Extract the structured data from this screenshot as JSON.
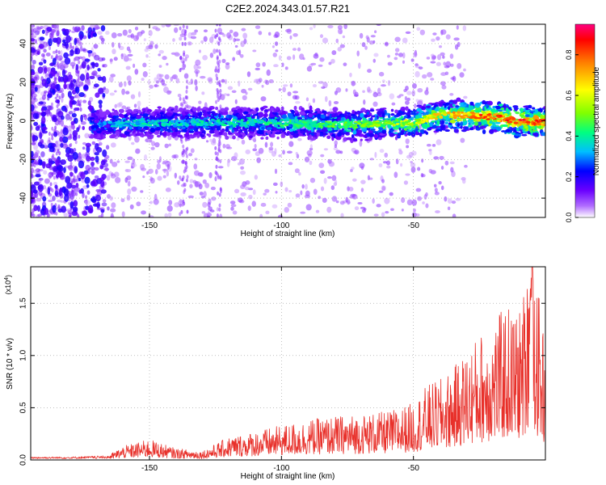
{
  "figure": {
    "title": "C2E2.2024.343.01.57.R21"
  },
  "chart_data": [
    {
      "type": "heatmap",
      "xlabel": "Height of straight line (km)",
      "ylabel": "Frequency (Hz)",
      "xlim": [
        -195,
        0
      ],
      "ylim": [
        -50,
        50
      ],
      "xticks": [
        -150,
        -100,
        -50
      ],
      "yticks": [
        -40,
        -20,
        0,
        20,
        40
      ],
      "xtick_labels": [
        "-150",
        "-100",
        "-50"
      ],
      "ytick_labels": [
        "-40",
        "-20",
        "0",
        "20",
        "40"
      ],
      "grid": true,
      "colorbar": {
        "label": "Normalized spectral amplitude",
        "range": [
          0,
          0.95
        ],
        "ticks": [
          0.0,
          0.2,
          0.4,
          0.6,
          0.8
        ],
        "tick_labels": [
          "0.0",
          "0.2",
          "0.4",
          "0.6",
          "0.8"
        ],
        "colormap": [
          "#ffffff",
          "#b06cff",
          "#6a00ff",
          "#0000ff",
          "#00bfff",
          "#00ff80",
          "#80ff00",
          "#ffff00",
          "#ff8000",
          "#ff0000",
          "#ff0080"
        ]
      },
      "ridge": {
        "x": [
          -170,
          -150,
          -125,
          -100,
          -75,
          -50,
          -40,
          -30,
          -20,
          -10,
          0
        ],
        "frequency_hz": [
          -2,
          -1,
          -1,
          -1,
          -2,
          -1,
          3,
          3,
          2,
          0,
          -1
        ],
        "peak_amplitude": [
          0.35,
          0.4,
          0.4,
          0.45,
          0.5,
          0.6,
          0.7,
          0.75,
          0.85,
          0.9,
          0.85
        ]
      }
    },
    {
      "type": "line",
      "xlabel": "Height of straight line (km)",
      "ylabel": "SNR (10 * v/v)",
      "y_multiplier": "(x10",
      "y_multiplier_exp": "4",
      "y_multiplier_close": ")",
      "xlim": [
        -195,
        0
      ],
      "ylim": [
        0,
        1.85
      ],
      "xticks": [
        -150,
        -100,
        -50
      ],
      "yticks": [
        0.0,
        0.5,
        1.0,
        1.5
      ],
      "xtick_labels": [
        "-150",
        "-100",
        "-50"
      ],
      "ytick_labels": [
        "0.0",
        "0.5",
        "1.0",
        "1.5"
      ],
      "grid": true,
      "series": [
        {
          "color": "#e8302a",
          "envelope_x": [
            -195,
            -180,
            -165,
            -160,
            -150,
            -140,
            -130,
            -120,
            -110,
            -100,
            -90,
            -80,
            -70,
            -60,
            -50,
            -45,
            -40,
            -35,
            -30,
            -25,
            -20,
            -15,
            -10,
            -7,
            -5,
            0
          ],
          "envelope_y": [
            0.03,
            0.03,
            0.05,
            0.12,
            0.18,
            0.1,
            0.08,
            0.2,
            0.25,
            0.3,
            0.35,
            0.38,
            0.4,
            0.42,
            0.5,
            0.65,
            0.7,
            0.8,
            0.95,
            1.1,
            1.2,
            1.35,
            1.3,
            1.6,
            1.85,
            1.0
          ]
        }
      ]
    }
  ]
}
